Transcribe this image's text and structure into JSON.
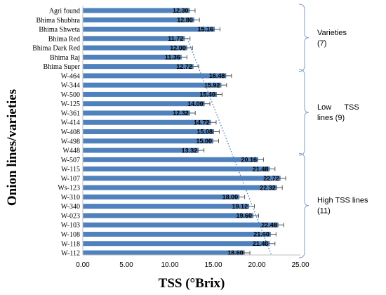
{
  "chart_data": {
    "type": "bar",
    "orientation": "horizontal",
    "categories": [
      "Agri found",
      "Bhima Shubhra",
      "Bhima Shweta",
      "Bhima Red",
      "Bhima Dark Red",
      "Bhima Raj",
      "Bhima Super",
      "W-464",
      "W-344",
      "W-500",
      "W-125",
      "W-361",
      "W-414",
      "W-408",
      "W-498",
      "W448",
      "W-507",
      "W-115",
      "W-107",
      "Ws-123",
      "W-310",
      "W-340",
      "W-023",
      "W-103",
      "W-108",
      "W-118",
      "W-112"
    ],
    "values": [
      12.3,
      12.8,
      15.16,
      11.72,
      12.0,
      11.36,
      12.72,
      16.48,
      15.92,
      15.4,
      14.0,
      12.32,
      14.72,
      15.08,
      15.0,
      13.32,
      20.16,
      21.48,
      22.72,
      22.32,
      18.0,
      19.12,
      19.6,
      22.48,
      21.6,
      21.48,
      18.6
    ],
    "value_labels": [
      "12.30",
      "12.80",
      "15.16",
      "11.72",
      "12.00",
      "11.36",
      "12.72",
      "16.48",
      "15.92",
      "15.40",
      "14.00",
      "12.32",
      "14.72",
      "15.08",
      "15.00",
      "13.32",
      "20.16",
      "21.48",
      "22.72",
      "22.32",
      "18.00",
      "19.12",
      "19.60",
      "22.48",
      "21.60",
      "21.48",
      "18.60"
    ],
    "error": 0.6,
    "xlim": [
      0,
      25
    ],
    "xticks": [
      "0.00",
      "5.00",
      "10.00",
      "15.00",
      "20.00",
      "25.00"
    ],
    "xlabel": "TSS (°Brix)",
    "ylabel": "Onion lines/varieties",
    "bar_color": "#4f81bd",
    "trendline": {
      "style": "dotted",
      "color": "#4f81bd",
      "from": [
        12.0,
        "Bhima Red"
      ],
      "to": [
        21.7,
        "W-112"
      ]
    },
    "groups": [
      {
        "label_lines": [
          "Varieties",
          "(7)"
        ],
        "first": 0,
        "last": 6
      },
      {
        "label_lines": [
          "Low      TSS",
          "lines (9)"
        ],
        "first": 7,
        "last": 15
      },
      {
        "label_lines": [
          "High TSS lines",
          "(11)"
        ],
        "first": 16,
        "last": 26
      }
    ]
  }
}
